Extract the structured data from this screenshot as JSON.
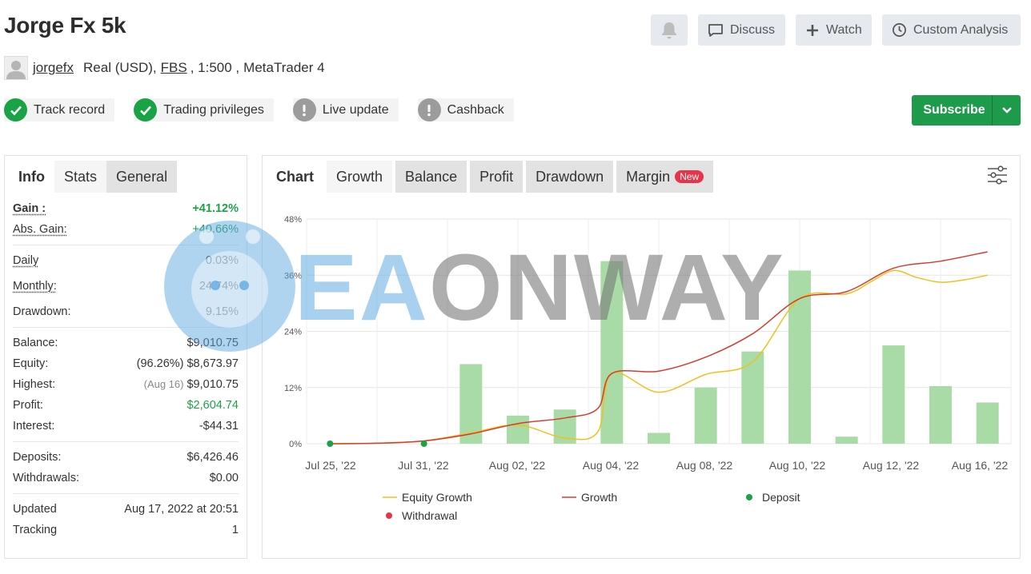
{
  "header": {
    "title": "Jorge Fx 5k",
    "buttons": {
      "discuss": "Discuss",
      "watch": "Watch",
      "custom_analysis": "Custom Analysis"
    },
    "account": {
      "user": "jorgefx",
      "type": "Real (USD),",
      "broker": "FBS",
      "leverage": ", 1:500 ,",
      "platform": "MetaTrader 4"
    },
    "badges": [
      "Track record",
      "Trading privileges",
      "Live update",
      "Cashback"
    ],
    "subscribe": "Subscribe"
  },
  "left": {
    "tabs": [
      "Info",
      "Stats",
      "General"
    ],
    "gain_label": "Gain :",
    "gain": "+41.12%",
    "abs_gain_label": "Abs. Gain:",
    "abs_gain": "+40.66%",
    "daily_label": "Daily",
    "daily": "0.03%",
    "monthly_label": "Monthly:",
    "monthly": "24.74%",
    "drawdown_label": "Drawdown:",
    "drawdown": "9.15%",
    "balance_label": "Balance:",
    "balance": "$9,010.75",
    "equity_label": "Equity:",
    "equity_pct": "(96.26%)",
    "equity": "$8,673.97",
    "highest_label": "Highest:",
    "highest_date": "(Aug 16)",
    "highest": "$9,010.75",
    "profit_label": "Profit:",
    "profit": "$2,604.74",
    "interest_label": "Interest:",
    "interest": "-$44.31",
    "deposits_label": "Deposits:",
    "deposits": "$6,426.46",
    "withdrawals_label": "Withdrawals:",
    "withdrawals": "$0.00",
    "updated_label": "Updated",
    "updated": "Aug 17, 2022 at 20:51",
    "tracking_label": "Tracking",
    "tracking": "1"
  },
  "right": {
    "tabs": [
      "Chart",
      "Growth",
      "Balance",
      "Profit",
      "Drawdown",
      "Margin"
    ],
    "new_badge": "New"
  },
  "watermark": {
    "part1": "EA",
    "part2": "ONWAY"
  },
  "chart_data": {
    "type": "line",
    "y_ticks": [
      "0%",
      "12%",
      "24%",
      "36%",
      "48%"
    ],
    "ylim": [
      0,
      48
    ],
    "x_ticks": [
      "Jul 25, '22",
      "Jul 31, '22",
      "Aug 02, '22",
      "Aug 04, '22",
      "Aug 08, '22",
      "Aug 10, '22",
      "Aug 12, '22",
      "Aug 16, '22"
    ],
    "bars": {
      "color": "#a8dba6",
      "values": [
        17,
        6,
        7.3,
        39,
        2.3,
        12,
        19.7,
        37,
        1.5,
        21,
        12.3,
        8.8
      ],
      "x": [
        3.5,
        4.5,
        5.5,
        6.5,
        7.5,
        8.5,
        9.5,
        10.5,
        11.5,
        12.5,
        13.5,
        14.5
      ]
    },
    "series": [
      {
        "name": "Equity Growth",
        "color": "#f0c020",
        "x": [
          0.5,
          1.5,
          2.5,
          3.5,
          4.5,
          5.5,
          6.2,
          6.5,
          7.5,
          8.5,
          9.5,
          10.5,
          11.5,
          12.0,
          12.5,
          13.0,
          13.5,
          14.0,
          14.5
        ],
        "y": [
          0,
          0.1,
          0.6,
          2.3,
          4.0,
          1.2,
          2.5,
          15.0,
          11.0,
          14.8,
          17.5,
          31.0,
          32.0,
          34.5,
          37.0,
          35.5,
          34.5,
          35.0,
          36.0
        ]
      },
      {
        "name": "Growth",
        "color": "#d63b2e",
        "x": [
          0.5,
          1.5,
          2.5,
          3.5,
          4.5,
          5.5,
          6.2,
          6.5,
          7.5,
          8.5,
          9.5,
          10.5,
          11.5,
          12.5,
          13.5,
          14.5
        ],
        "y": [
          0,
          0.1,
          0.6,
          2.1,
          4.3,
          5.5,
          7.5,
          15.0,
          15.5,
          18.5,
          23.5,
          31.0,
          32.5,
          37.5,
          39.0,
          41.0
        ]
      }
    ],
    "deposit_points": {
      "name": "Deposit",
      "color": "#19a346",
      "x": [
        0.5,
        2.5
      ],
      "y": [
        0,
        0
      ]
    },
    "legend": [
      "Equity Growth",
      "Growth",
      "Deposit",
      "Withdrawal"
    ],
    "withdrawal_color": "#e8334a"
  }
}
